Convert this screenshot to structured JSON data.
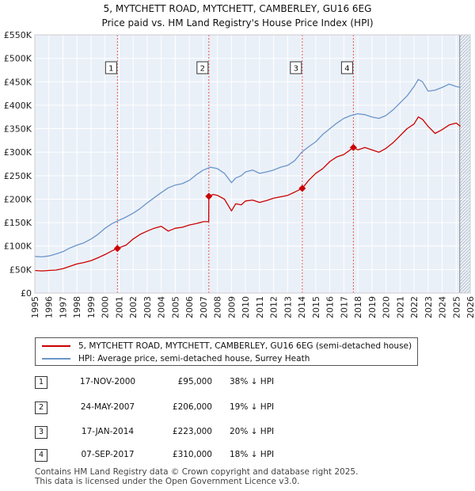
{
  "title_line1": "5, MYTCHETT ROAD, MYTCHETT, CAMBERLEY, GU16 6EG",
  "title_line2": "Price paid vs. HM Land Registry's House Price Index (HPI)",
  "chart_data": {
    "type": "line",
    "xlim": [
      1995,
      2026
    ],
    "ylim": [
      0,
      550000
    ],
    "y_ticks": [
      {
        "value": 0,
        "label": "£0"
      },
      {
        "value": 50000,
        "label": "£50K"
      },
      {
        "value": 100000,
        "label": "£100K"
      },
      {
        "value": 150000,
        "label": "£150K"
      },
      {
        "value": 200000,
        "label": "£200K"
      },
      {
        "value": 250000,
        "label": "£250K"
      },
      {
        "value": 300000,
        "label": "£300K"
      },
      {
        "value": 350000,
        "label": "£350K"
      },
      {
        "value": 400000,
        "label": "£400K"
      },
      {
        "value": 450000,
        "label": "£450K"
      },
      {
        "value": 500000,
        "label": "£500K"
      },
      {
        "value": 550000,
        "label": "£550K"
      }
    ],
    "x_ticks": [
      "1995",
      "1996",
      "1997",
      "1998",
      "1999",
      "2000",
      "2001",
      "2002",
      "2003",
      "2004",
      "2005",
      "2006",
      "2007",
      "2008",
      "2009",
      "2010",
      "2011",
      "2012",
      "2013",
      "2014",
      "2015",
      "2016",
      "2017",
      "2018",
      "2019",
      "2020",
      "2021",
      "2022",
      "2023",
      "2024",
      "2025",
      "2026"
    ],
    "grid": true,
    "series": [
      {
        "name": "5, MYTCHETT ROAD, MYTCHETT, CAMBERLEY, GU16 6EG (semi-detached house)",
        "color": "#cc0000",
        "x": [
          1995.0,
          1995.5,
          1996.0,
          1996.5,
          1997.0,
          1997.5,
          1998.0,
          1998.5,
          1999.0,
          1999.5,
          2000.0,
          2000.5,
          2000.88,
          2001.5,
          2002.0,
          2002.5,
          2003.0,
          2003.5,
          2004.0,
          2004.5,
          2005.0,
          2005.5,
          2006.0,
          2006.5,
          2007.0,
          2007.38,
          2007.39,
          2007.7,
          2008.0,
          2008.5,
          2009.0,
          2009.3,
          2009.7,
          2010.0,
          2010.5,
          2011.0,
          2011.5,
          2012.0,
          2012.5,
          2013.0,
          2013.5,
          2014.04,
          2014.5,
          2015.0,
          2015.5,
          2016.0,
          2016.5,
          2017.0,
          2017.68,
          2018.0,
          2018.5,
          2019.0,
          2019.5,
          2020.0,
          2020.5,
          2021.0,
          2021.5,
          2022.0,
          2022.3,
          2022.6,
          2023.0,
          2023.5,
          2024.0,
          2024.5,
          2025.0,
          2025.3
        ],
        "values": [
          48000,
          47000,
          48000,
          49000,
          52000,
          57000,
          62000,
          65000,
          69000,
          75000,
          82000,
          90000,
          95000,
          102000,
          115000,
          125000,
          132000,
          138000,
          142000,
          132000,
          138000,
          140000,
          145000,
          148000,
          152000,
          152000,
          206000,
          210000,
          208000,
          200000,
          175000,
          190000,
          188000,
          196000,
          198000,
          193000,
          197000,
          202000,
          205000,
          208000,
          215000,
          223000,
          240000,
          255000,
          265000,
          280000,
          290000,
          295000,
          310000,
          305000,
          310000,
          305000,
          300000,
          308000,
          320000,
          335000,
          350000,
          360000,
          375000,
          370000,
          355000,
          340000,
          348000,
          358000,
          362000,
          355000
        ]
      },
      {
        "name": "HPI: Average price, semi-detached house, Surrey Heath",
        "color": "#6a95c9",
        "x": [
          1995.0,
          1995.5,
          1996.0,
          1996.5,
          1997.0,
          1997.5,
          1998.0,
          1998.5,
          1999.0,
          1999.5,
          2000.0,
          2000.5,
          2001.0,
          2001.5,
          2002.0,
          2002.5,
          2003.0,
          2003.5,
          2004.0,
          2004.5,
          2005.0,
          2005.5,
          2006.0,
          2006.5,
          2007.0,
          2007.5,
          2008.0,
          2008.5,
          2009.0,
          2009.3,
          2009.7,
          2010.0,
          2010.5,
          2011.0,
          2011.5,
          2012.0,
          2012.5,
          2013.0,
          2013.5,
          2014.0,
          2014.5,
          2015.0,
          2015.5,
          2016.0,
          2016.5,
          2017.0,
          2017.5,
          2018.0,
          2018.5,
          2019.0,
          2019.5,
          2020.0,
          2020.5,
          2021.0,
          2021.5,
          2022.0,
          2022.3,
          2022.6,
          2023.0,
          2023.5,
          2024.0,
          2024.5,
          2025.0,
          2025.3
        ],
        "values": [
          78000,
          77000,
          79000,
          83000,
          88000,
          96000,
          102000,
          107000,
          115000,
          125000,
          138000,
          148000,
          155000,
          162000,
          170000,
          180000,
          192000,
          203000,
          214000,
          224000,
          230000,
          233000,
          240000,
          252000,
          262000,
          268000,
          265000,
          255000,
          235000,
          245000,
          250000,
          258000,
          262000,
          255000,
          258000,
          262000,
          268000,
          272000,
          282000,
          300000,
          312000,
          322000,
          338000,
          350000,
          362000,
          372000,
          378000,
          382000,
          380000,
          375000,
          372000,
          378000,
          390000,
          405000,
          420000,
          440000,
          455000,
          450000,
          430000,
          432000,
          438000,
          445000,
          440000,
          438000
        ]
      }
    ],
    "events": [
      {
        "label": "1",
        "x": 2000.88,
        "value": 95000
      },
      {
        "label": "2",
        "x": 2007.39,
        "value": 206000
      },
      {
        "label": "3",
        "x": 2014.04,
        "value": 223000
      },
      {
        "label": "4",
        "x": 2017.68,
        "value": 310000
      }
    ],
    "future_from": 2025.25
  },
  "legend": {
    "property": "5, MYTCHETT ROAD, MYTCHETT, CAMBERLEY, GU16 6EG (semi-detached house)",
    "hpi": "HPI: Average price, semi-detached house, Surrey Heath"
  },
  "transactions": [
    {
      "num": "1",
      "date": "17-NOV-2000",
      "price": "£95,000",
      "hpi": "38% ↓ HPI"
    },
    {
      "num": "2",
      "date": "24-MAY-2007",
      "price": "£206,000",
      "hpi": "19% ↓ HPI"
    },
    {
      "num": "3",
      "date": "17-JAN-2014",
      "price": "£223,000",
      "hpi": "20% ↓ HPI"
    },
    {
      "num": "4",
      "date": "07-SEP-2017",
      "price": "£310,000",
      "hpi": "18% ↓ HPI"
    }
  ],
  "footer": {
    "line1": "Contains HM Land Registry data © Crown copyright and database right 2025.",
    "line2": "This data is licensed under the Open Government Licence v3.0."
  }
}
